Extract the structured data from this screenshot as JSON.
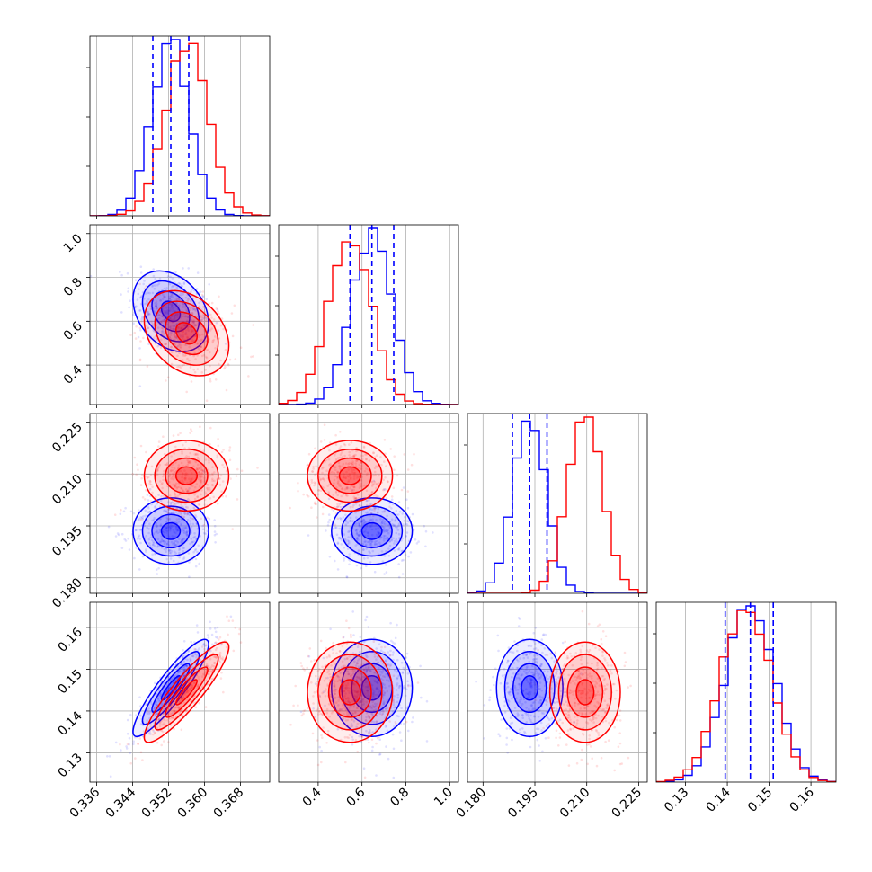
{
  "chart_data": {
    "type": "corner",
    "grid": true,
    "colors": {
      "series_a": "#0000ff",
      "series_b": "#ff0000"
    },
    "series": [
      {
        "color": "blue",
        "mean": [
          0.3525,
          0.645,
          0.1935,
          0.1455
        ],
        "std": [
          0.0042,
          0.092,
          0.0048,
          0.0058
        ],
        "corr": {
          "0-1": -0.3,
          "0-3": 0.9
        }
      },
      {
        "color": "red",
        "mean": [
          0.356,
          0.545,
          0.2095,
          0.1445
        ],
        "std": [
          0.0047,
          0.097,
          0.0051,
          0.006
        ],
        "corr": {
          "0-1": -0.3,
          "0-3": 0.9
        }
      }
    ],
    "quantile_lines": {
      "color": "blue",
      "style": "dashed",
      "values": [
        [
          0.3485,
          0.3525,
          0.3565
        ],
        [
          0.545,
          0.645,
          0.745
        ],
        [
          0.1885,
          0.1935,
          0.1985
        ],
        [
          0.1395,
          0.1455,
          0.151
        ]
      ]
    },
    "parameters": [
      {
        "range": [
          0.3345,
          0.3745
        ],
        "ticks": [
          "0.336",
          "0.344",
          "0.352",
          "0.360",
          "0.368"
        ]
      },
      {
        "range": [
          0.22,
          1.04
        ],
        "ticks": [
          "0.4",
          "0.6",
          "0.8",
          "1.0"
        ]
      },
      {
        "range": [
          0.1755,
          0.2275
        ],
        "ticks": [
          "0.180",
          "0.195",
          "0.210",
          "0.225"
        ]
      },
      {
        "range": [
          0.123,
          0.166
        ],
        "ticks": [
          "0.13",
          "0.14",
          "0.15",
          "0.16"
        ]
      }
    ],
    "y_tick_labels": {
      "row_1": [
        "0.4",
        "0.6",
        "0.8",
        "1.0"
      ],
      "row_2": [
        "0.180",
        "0.195",
        "0.210",
        "0.225"
      ],
      "row_3": [
        "0.13",
        "0.14",
        "0.15",
        "0.16"
      ]
    }
  }
}
